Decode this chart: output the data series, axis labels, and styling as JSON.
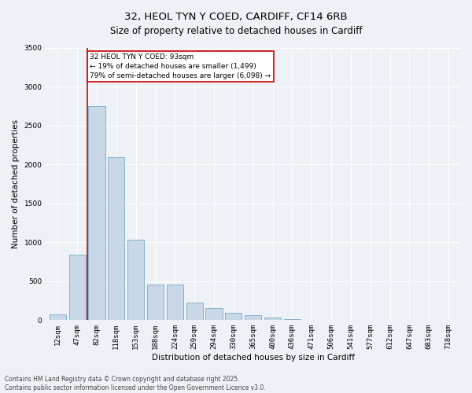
{
  "title1": "32, HEOL TYN Y COED, CARDIFF, CF14 6RB",
  "title2": "Size of property relative to detached houses in Cardiff",
  "xlabel": "Distribution of detached houses by size in Cardiff",
  "ylabel": "Number of detached properties",
  "bar_labels": [
    "12sqm",
    "47sqm",
    "82sqm",
    "118sqm",
    "153sqm",
    "188sqm",
    "224sqm",
    "259sqm",
    "294sqm",
    "330sqm",
    "365sqm",
    "400sqm",
    "436sqm",
    "471sqm",
    "506sqm",
    "541sqm",
    "577sqm",
    "612sqm",
    "647sqm",
    "683sqm",
    "718sqm"
  ],
  "bar_values": [
    75,
    840,
    2750,
    2100,
    1030,
    460,
    460,
    230,
    160,
    90,
    60,
    35,
    18,
    8,
    5,
    3,
    2,
    1,
    1,
    0,
    0
  ],
  "bar_color": "#c8d8e8",
  "bar_edge_color": "#7aaac8",
  "ylim": [
    0,
    3500
  ],
  "yticks": [
    0,
    500,
    1000,
    1500,
    2000,
    2500,
    3000,
    3500
  ],
  "vline_x": 1.5,
  "vline_color": "#cc0000",
  "annotation_title": "32 HEOL TYN Y COED: 93sqm",
  "annotation_line1": "← 19% of detached houses are smaller (1,499)",
  "annotation_line2": "79% of semi-detached houses are larger (6,098) →",
  "annotation_box_color": "#cc0000",
  "annotation_bg": "#ffffff",
  "footer1": "Contains HM Land Registry data © Crown copyright and database right 2025.",
  "footer2": "Contains public sector information licensed under the Open Government Licence v3.0.",
  "bg_color": "#eef2f6",
  "grid_color": "#ffffff",
  "title_fontsize": 9.5,
  "subtitle_fontsize": 8.5,
  "axis_label_fontsize": 7.5,
  "tick_fontsize": 6.5,
  "annotation_fontsize": 6.5,
  "footer_fontsize": 5.5
}
